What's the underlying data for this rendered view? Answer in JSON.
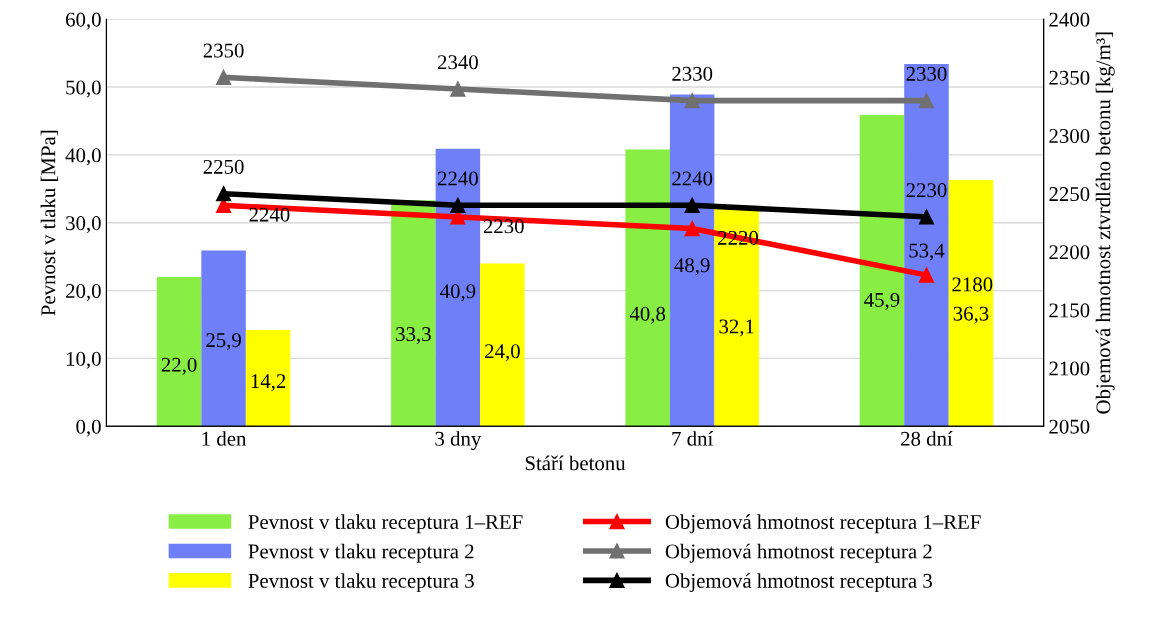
{
  "chart_data": {
    "type": "bar",
    "xlabel": "Stáří betonu",
    "ylabel": "Pevnost v tlaku [MPa]",
    "y2label": "Objemová hmotnost ztvrdlého betonu [kg/m³]",
    "categories": [
      "1 den",
      "3 dny",
      "7 dní",
      "28 dní"
    ],
    "series": [
      {
        "name": "Pevnost v tlaku receptura 1–REF",
        "color": "#88ee44",
        "values": [
          22.0,
          33.3,
          40.8,
          45.9
        ],
        "value_labels": [
          "22,0",
          "33,3",
          "40,8",
          "45,9"
        ]
      },
      {
        "name": "Pevnost v tlaku receptura 2",
        "color": "#6f7ff7",
        "values": [
          25.9,
          40.9,
          48.9,
          53.4
        ],
        "value_labels": [
          "25,9",
          "40,9",
          "48,9",
          "53,4"
        ]
      },
      {
        "name": "Pevnost v tlaku receptura 3",
        "color": "#ffff00",
        "values": [
          14.2,
          24.0,
          32.1,
          36.3
        ],
        "value_labels": [
          "14,2",
          "24,0",
          "32,1",
          "36,3"
        ]
      },
      {
        "name": "Objemová hmotnost receptura 1–REF",
        "type": "line",
        "axis": "y2",
        "marker": "triangle",
        "color": "#ff0000",
        "values": [
          2240,
          2230,
          2220,
          2180
        ],
        "value_labels": [
          "2240",
          "2230",
          "2220",
          "2180"
        ]
      },
      {
        "name": "Objemová hmotnost receptura 2",
        "type": "line",
        "axis": "y2",
        "marker": "triangle",
        "color": "#707070",
        "values": [
          2350,
          2340,
          2330,
          2330
        ],
        "value_labels": [
          "2350",
          "2340",
          "2330",
          "2330"
        ]
      },
      {
        "name": "Objemová hmotnost receptura 3",
        "type": "line",
        "axis": "y2",
        "marker": "triangle",
        "color": "#000000",
        "values": [
          2250,
          2240,
          2240,
          2230
        ],
        "value_labels": [
          "2250",
          "2240",
          "2240",
          "2230"
        ]
      }
    ],
    "ylim": [
      0,
      60
    ],
    "yticks": [
      {
        "value": 0,
        "label": "0,0"
      },
      {
        "value": 10,
        "label": "10,0"
      },
      {
        "value": 20,
        "label": "20,0"
      },
      {
        "value": 30,
        "label": "30,0"
      },
      {
        "value": 40,
        "label": "40,0"
      },
      {
        "value": 50,
        "label": "50,0"
      },
      {
        "value": 60,
        "label": "60,0"
      }
    ],
    "y2lim": [
      2050,
      2400
    ],
    "y2ticks": [
      2050,
      2100,
      2150,
      2200,
      2250,
      2300,
      2350,
      2400
    ],
    "grid": "y",
    "legend": "bottom"
  }
}
